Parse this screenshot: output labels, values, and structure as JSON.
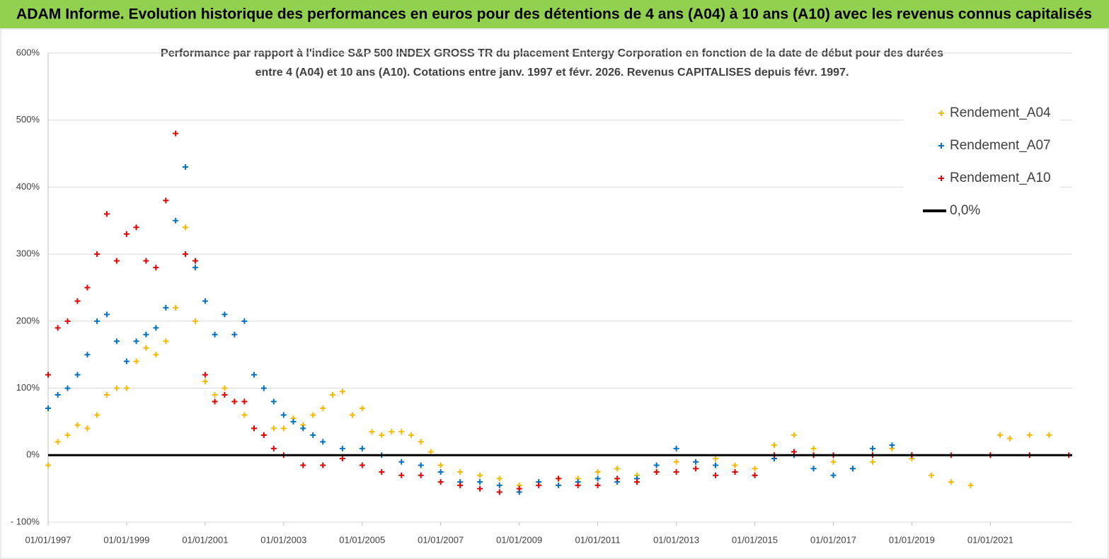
{
  "header": {
    "title": "ADAM Informe. Evolution historique des performances en euros pour des détentions de 4 ans (A04) à 10 ans (A10) avec les revenus connus capitalisés"
  },
  "chart_data": {
    "type": "scatter",
    "subtitle": [
      "Performance par rapport à l'indice S&P 500 INDEX GROSS TR  du placement Entergy Corporation en fonction de la date de début pour des durées",
      "entre 4 (A04) et 10 ans (A10). Cotations entre janv. 1997 et févr. 2026. Revenus CAPITALISES depuis févr. 1997."
    ],
    "xlim": [
      "1997-01-01",
      "2023-02-01"
    ],
    "xticks": [
      {
        "value": "1997-01-01",
        "label": "01/01/1997"
      },
      {
        "value": "1999-01-01",
        "label": "01/01/1999"
      },
      {
        "value": "2001-01-01",
        "label": "01/01/2001"
      },
      {
        "value": "2003-01-01",
        "label": "01/01/2003"
      },
      {
        "value": "2005-01-01",
        "label": "01/01/2005"
      },
      {
        "value": "2007-01-01",
        "label": "01/01/2007"
      },
      {
        "value": "2009-01-01",
        "label": "01/01/2009"
      },
      {
        "value": "2011-01-01",
        "label": "01/01/2011"
      },
      {
        "value": "2013-01-01",
        "label": "01/01/2013"
      },
      {
        "value": "2015-01-01",
        "label": "01/01/2015"
      },
      {
        "value": "2017-01-01",
        "label": "01/01/2017"
      },
      {
        "value": "2019-01-01",
        "label": "01/01/2019"
      },
      {
        "value": "2021-01-01",
        "label": "01/01/2021"
      }
    ],
    "ylim": [
      -100,
      600
    ],
    "yticks": [
      {
        "value": -100,
        "label": "- 100%"
      },
      {
        "value": 0,
        "label": "0%"
      },
      {
        "value": 100,
        "label": "100%"
      },
      {
        "value": 200,
        "label": "200%"
      },
      {
        "value": 300,
        "label": "300%"
      },
      {
        "value": 400,
        "label": "400%"
      },
      {
        "value": 500,
        "label": "500%"
      },
      {
        "value": 600,
        "label": "600%"
      }
    ],
    "grid": true,
    "legend": "upper right",
    "series": [
      {
        "name": "Rendement_A04",
        "color": "#f5b800",
        "marker": "+",
        "x": [
          "1997-01-01",
          "1997-04-01",
          "1997-07-01",
          "1997-10-01",
          "1998-01-01",
          "1998-04-01",
          "1998-07-01",
          "1998-10-01",
          "1999-01-01",
          "1999-04-01",
          "1999-07-01",
          "1999-10-01",
          "2000-01-01",
          "2000-04-01",
          "2000-07-01",
          "2000-10-01",
          "2001-01-01",
          "2001-04-01",
          "2001-07-01",
          "2001-10-01",
          "2002-01-01",
          "2002-04-01",
          "2002-07-01",
          "2002-10-01",
          "2003-01-01",
          "2003-04-01",
          "2003-07-01",
          "2003-10-01",
          "2004-01-01",
          "2004-04-01",
          "2004-07-01",
          "2004-10-01",
          "2005-01-01",
          "2005-04-01",
          "2005-07-01",
          "2005-10-01",
          "2006-01-01",
          "2006-04-01",
          "2006-07-01",
          "2006-10-01",
          "2007-01-01",
          "2007-07-01",
          "2008-01-01",
          "2008-07-01",
          "2009-01-01",
          "2009-07-01",
          "2010-01-01",
          "2010-07-01",
          "2011-01-01",
          "2011-07-01",
          "2012-01-01",
          "2012-07-01",
          "2013-01-01",
          "2013-07-01",
          "2014-01-01",
          "2014-07-01",
          "2015-01-01",
          "2015-07-01",
          "2016-01-01",
          "2016-07-01",
          "2017-01-01",
          "2017-07-01",
          "2018-01-01",
          "2018-07-01",
          "2019-01-01",
          "2019-07-01",
          "2020-01-01",
          "2020-07-01",
          "2021-01-01",
          "2021-04-01",
          "2021-07-01",
          "2022-01-01",
          "2022-07-01"
        ],
        "values": [
          -15,
          20,
          30,
          45,
          40,
          60,
          90,
          100,
          100,
          140,
          160,
          150,
          170,
          220,
          340,
          200,
          110,
          90,
          100,
          80,
          60,
          40,
          30,
          40,
          40,
          55,
          45,
          60,
          70,
          90,
          95,
          60,
          70,
          35,
          30,
          35,
          35,
          30,
          20,
          5,
          -15,
          -25,
          -30,
          -35,
          -45,
          -40,
          -35,
          -35,
          -25,
          -20,
          -30,
          -25,
          -10,
          -10,
          -5,
          -15,
          -20,
          15,
          30,
          10,
          -10,
          -20,
          -10,
          10,
          -5,
          -30,
          -40,
          -45,
          0,
          30,
          25,
          30,
          30
        ]
      },
      {
        "name": "Rendement_A07",
        "color": "#0070c0",
        "marker": "+",
        "x": [
          "1997-01-01",
          "1997-04-01",
          "1997-07-01",
          "1997-10-01",
          "1998-01-01",
          "1998-04-01",
          "1998-07-01",
          "1998-10-01",
          "1999-01-01",
          "1999-04-01",
          "1999-07-01",
          "1999-10-01",
          "2000-01-01",
          "2000-04-01",
          "2000-07-01",
          "2000-10-01",
          "2001-01-01",
          "2001-04-01",
          "2001-07-01",
          "2001-10-01",
          "2002-01-01",
          "2002-04-01",
          "2002-07-01",
          "2002-10-01",
          "2003-01-01",
          "2003-04-01",
          "2003-07-01",
          "2003-10-01",
          "2004-01-01",
          "2004-07-01",
          "2005-01-01",
          "2005-07-01",
          "2006-01-01",
          "2006-07-01",
          "2007-01-01",
          "2007-07-01",
          "2008-01-01",
          "2008-07-01",
          "2009-01-01",
          "2009-07-01",
          "2010-01-01",
          "2010-07-01",
          "2011-01-01",
          "2011-07-01",
          "2012-01-01",
          "2012-07-01",
          "2013-01-01",
          "2013-07-01",
          "2014-01-01",
          "2014-07-01",
          "2015-01-01",
          "2015-07-01",
          "2016-01-01",
          "2016-07-01",
          "2017-01-01",
          "2017-07-01",
          "2018-01-01",
          "2018-07-01",
          "2019-01-01"
        ],
        "values": [
          70,
          90,
          100,
          120,
          150,
          200,
          210,
          170,
          140,
          170,
          180,
          190,
          220,
          350,
          430,
          280,
          230,
          180,
          210,
          180,
          200,
          120,
          100,
          80,
          60,
          50,
          40,
          30,
          20,
          10,
          10,
          0,
          -10,
          -15,
          -25,
          -40,
          -40,
          -45,
          -55,
          -40,
          -45,
          -40,
          -35,
          -40,
          -35,
          -15,
          10,
          -10,
          -15,
          -25,
          -30,
          -5,
          0,
          -20,
          -30,
          -20,
          10,
          15,
          0
        ]
      },
      {
        "name": "Rendement_A10",
        "color": "#e00000",
        "marker": "+",
        "x": [
          "1997-01-01",
          "1997-04-01",
          "1997-07-01",
          "1997-10-01",
          "1998-01-01",
          "1998-04-01",
          "1998-07-01",
          "1998-10-01",
          "1999-01-01",
          "1999-04-01",
          "1999-07-01",
          "1999-10-01",
          "2000-01-01",
          "2000-04-01",
          "2000-07-01",
          "2000-10-01",
          "2001-01-01",
          "2001-04-01",
          "2001-07-01",
          "2001-10-01",
          "2002-01-01",
          "2002-04-01",
          "2002-07-01",
          "2002-10-01",
          "2003-01-01",
          "2003-07-01",
          "2004-01-01",
          "2004-07-01",
          "2005-01-01",
          "2005-07-01",
          "2006-01-01",
          "2006-07-01",
          "2007-01-01",
          "2007-07-01",
          "2008-01-01",
          "2008-07-01",
          "2009-01-01",
          "2009-07-01",
          "2010-01-01",
          "2010-07-01",
          "2011-01-01",
          "2011-07-01",
          "2012-01-01",
          "2012-07-01",
          "2013-01-01",
          "2013-07-01",
          "2014-01-01",
          "2014-07-01",
          "2015-01-01",
          "2015-07-01",
          "2016-01-01",
          "2016-07-01",
          "2017-01-01",
          "2018-01-01",
          "2019-01-01",
          "2020-01-01",
          "2021-01-01",
          "2022-01-01",
          "2023-01-01"
        ],
        "values": [
          120,
          190,
          200,
          230,
          250,
          300,
          360,
          290,
          330,
          340,
          290,
          280,
          380,
          480,
          300,
          290,
          120,
          80,
          90,
          80,
          80,
          40,
          30,
          10,
          0,
          -15,
          -15,
          -5,
          -15,
          -25,
          -30,
          -30,
          -40,
          -45,
          -50,
          -55,
          -50,
          -45,
          -35,
          -45,
          -45,
          -35,
          -40,
          -25,
          -25,
          -20,
          -30,
          -25,
          -30,
          0,
          5,
          0,
          0,
          0,
          0,
          0,
          0,
          0,
          0
        ]
      },
      {
        "name": "0,0%",
        "color": "#000000",
        "marker": "line",
        "x": [
          "1997-01-01",
          "2023-02-01"
        ],
        "values": [
          0,
          0
        ]
      }
    ]
  }
}
